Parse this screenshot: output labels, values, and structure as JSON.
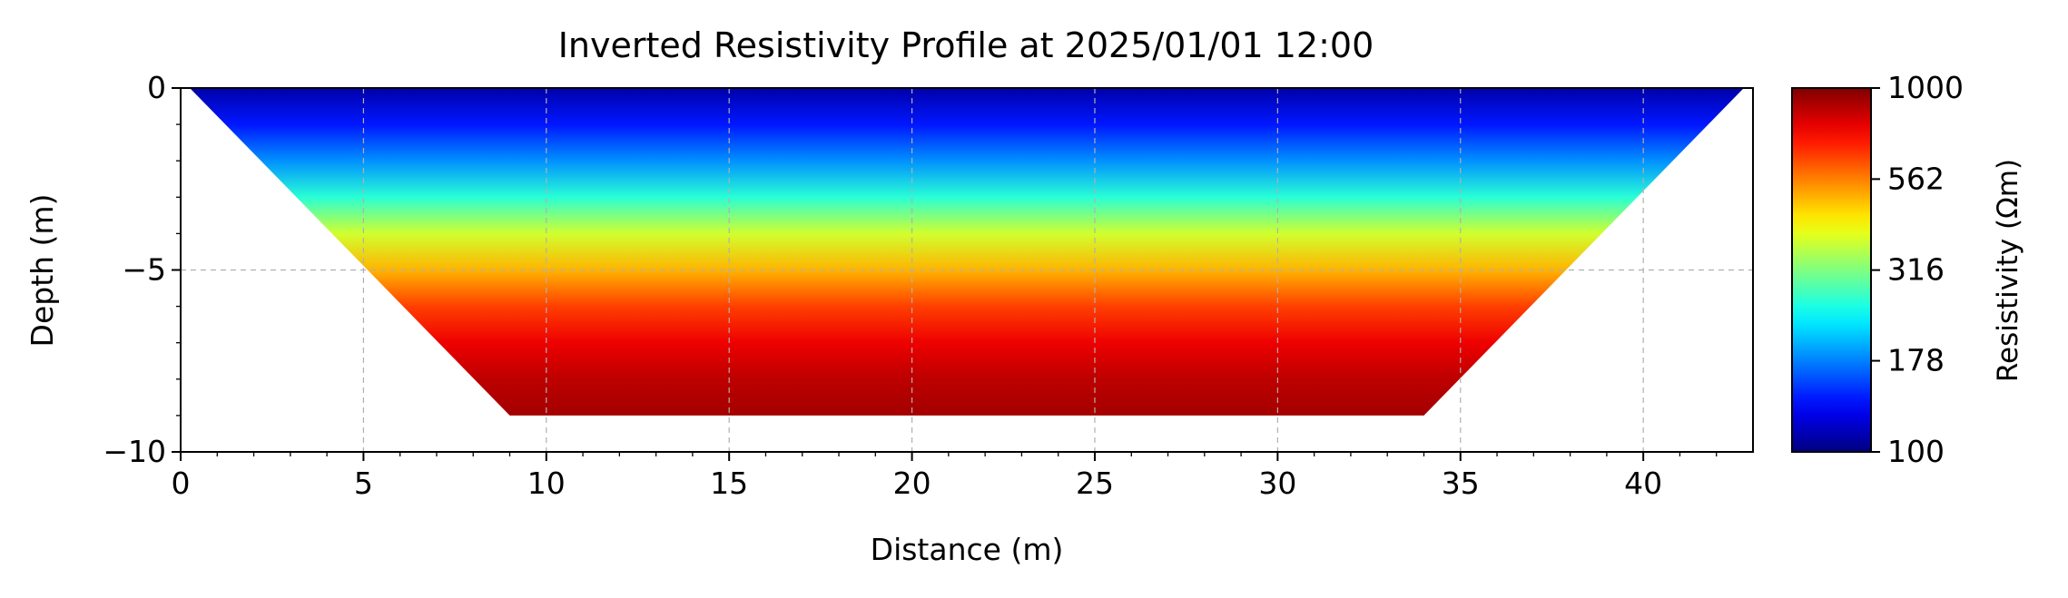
{
  "chart_data": {
    "type": "heatmap",
    "title": "Inverted Resistivity Profile at 2025/01/01 12:00",
    "xlabel": "Distance (m)",
    "ylabel": "Depth (m)",
    "xlim": [
      0,
      43
    ],
    "ylim": [
      -10,
      0
    ],
    "xticks": [
      0,
      5,
      10,
      15,
      20,
      25,
      30,
      35,
      40
    ],
    "xtick_labels": [
      "0",
      "5",
      "10",
      "15",
      "20",
      "25",
      "30",
      "35",
      "40"
    ],
    "yticks": [
      0,
      -5,
      -10
    ],
    "ytick_labels": [
      "0",
      "−5",
      "−10"
    ],
    "grid": true,
    "profile_outline": {
      "x": [
        0.25,
        42.75,
        34,
        9
      ],
      "y": [
        0,
        0,
        -9,
        -9
      ]
    },
    "resistivity_by_depth": {
      "depth": [
        0,
        -1,
        -2,
        -3,
        -4,
        -5,
        -6,
        -7,
        -8,
        -9
      ],
      "value": [
        110,
        140,
        185,
        260,
        380,
        500,
        650,
        780,
        870,
        920
      ]
    },
    "colorbar": {
      "label": "Resistivity (Ωm)",
      "range": [
        100,
        1000
      ],
      "scale": "log",
      "colormap": "jet",
      "ticks": [
        100,
        178,
        316,
        562,
        1000
      ],
      "tick_labels": [
        "100",
        "178",
        "316",
        "562",
        "1000"
      ]
    }
  }
}
